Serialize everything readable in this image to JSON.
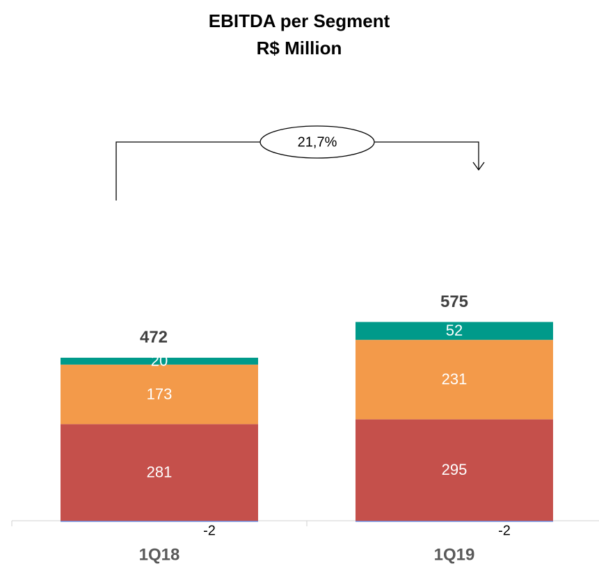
{
  "chart_data": {
    "type": "stacked_bar",
    "title": "EBITDA per Segment",
    "subtitle": "R$ Million",
    "categories": [
      "1Q18",
      "1Q19"
    ],
    "series": [
      {
        "color": "#c5504b",
        "values": [
          281,
          295
        ]
      },
      {
        "color": "#f39a4a",
        "values": [
          173,
          231
        ]
      },
      {
        "color": "#009a8a",
        "values": [
          20,
          52
        ]
      },
      {
        "color": "#6b7fd0",
        "values": [
          -2,
          -2
        ]
      }
    ],
    "totals": [
      472,
      575
    ],
    "annotation": "21,7%",
    "ylim": [
      0,
      1000
    ]
  }
}
